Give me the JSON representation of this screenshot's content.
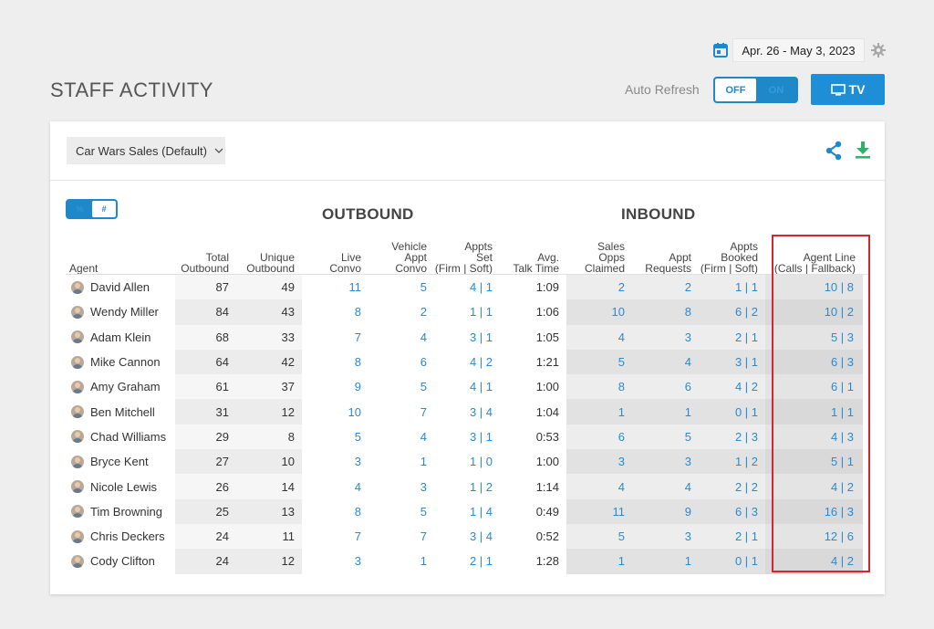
{
  "header": {
    "date_range": "Apr. 26 - May 3, 2023",
    "page_title": "STAFF ACTIVITY",
    "auto_refresh_label": "Auto Refresh",
    "toggle_off": "OFF",
    "toggle_on": "ON",
    "tv_label": "TV"
  },
  "card": {
    "selected_report": "Car Wars Sales (Default)",
    "view_toggle": {
      "percent": "%",
      "number": "#"
    },
    "group_outbound": "OUTBOUND",
    "group_inbound": "INBOUND"
  },
  "columns": [
    "Agent",
    "Total\nOutbound",
    "Unique\nOutbound",
    "Live\nConvo",
    "Vehicle\nAppt\nConvo",
    "Appts\nSet\n(Firm | Soft)",
    "Avg.\nTalk Time",
    "Sales\nOpps\nClaimed",
    "Appt\nRequests",
    "Appts\nBooked\n(Firm | Soft)",
    "Agent Line\n(Calls | Fallback)"
  ],
  "rows": [
    [
      "David Allen",
      "87",
      "49",
      "11",
      "5",
      "4 | 1",
      "1:09",
      "2",
      "2",
      "1 | 1",
      "10 | 8"
    ],
    [
      "Wendy Miller",
      "84",
      "43",
      "8",
      "2",
      "1 | 1",
      "1:06",
      "10",
      "8",
      "6 | 2",
      "10 | 2"
    ],
    [
      "Adam Klein",
      "68",
      "33",
      "7",
      "4",
      "3 | 1",
      "1:05",
      "4",
      "3",
      "2 | 1",
      "5 | 3"
    ],
    [
      "Mike Cannon",
      "64",
      "42",
      "8",
      "6",
      "4 | 2",
      "1:21",
      "5",
      "4",
      "3 | 1",
      "6 | 3"
    ],
    [
      "Amy Graham",
      "61",
      "37",
      "9",
      "5",
      "4 | 1",
      "1:00",
      "8",
      "6",
      "4 | 2",
      "6 | 1"
    ],
    [
      "Ben Mitchell",
      "31",
      "12",
      "10",
      "7",
      "3 | 4",
      "1:04",
      "1",
      "1",
      "0 | 1",
      "1 | 1"
    ],
    [
      "Chad Williams",
      "29",
      "8",
      "5",
      "4",
      "3 | 1",
      "0:53",
      "6",
      "5",
      "2 | 3",
      "4 | 3"
    ],
    [
      "Bryce Kent",
      "27",
      "10",
      "3",
      "1",
      "1 | 0",
      "1:00",
      "3",
      "3",
      "1 | 2",
      "5 | 1"
    ],
    [
      "Nicole Lewis",
      "26",
      "14",
      "4",
      "3",
      "1 | 2",
      "1:14",
      "4",
      "4",
      "2 | 2",
      "4 | 2"
    ],
    [
      "Tim Browning",
      "25",
      "13",
      "8",
      "5",
      "1 | 4",
      "0:49",
      "11",
      "9",
      "6 | 3",
      "16 | 3"
    ],
    [
      "Chris Deckers",
      "24",
      "11",
      "7",
      "7",
      "3 | 4",
      "0:52",
      "5",
      "3",
      "2 | 1",
      "12 | 6"
    ],
    [
      "Cody Clifton",
      "24",
      "12",
      "3",
      "1",
      "2 | 1",
      "1:28",
      "1",
      "1",
      "0 | 1",
      "4 | 2"
    ]
  ],
  "colors": {
    "accent": "#1e88c9",
    "link": "#2a8ad0",
    "highlight": "#d9232e",
    "download": "#2bb36a"
  }
}
